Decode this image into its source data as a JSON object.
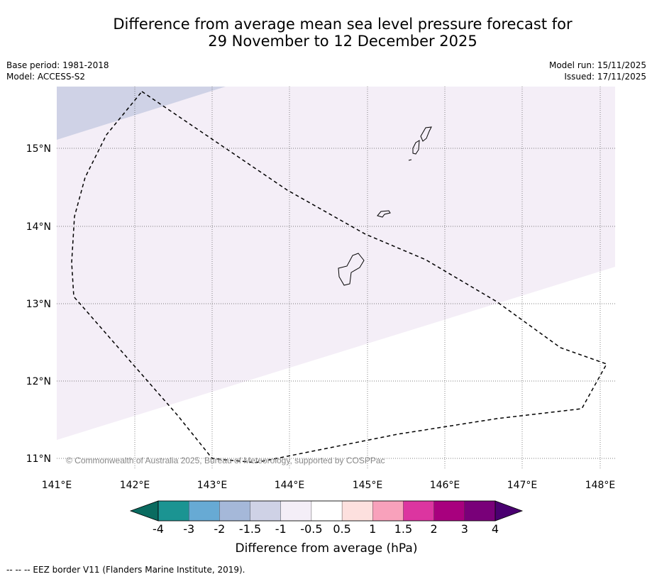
{
  "title": {
    "line1": "Difference from average mean sea level pressure forecast for",
    "line2": "29 November to 12 December 2025"
  },
  "meta": {
    "base_period": "Base period: 1981-2018",
    "model": "Model: ACCESS-S2",
    "model_run": "Model run: 15/11/2025",
    "issued": "Issued: 17/11/2025"
  },
  "map": {
    "lat_labels": [
      "15°N",
      "14°N",
      "13°N",
      "12°N",
      "11°N"
    ],
    "lon_labels": [
      "141°E",
      "142°E",
      "143°E",
      "144°E",
      "145°E",
      "146°E",
      "147°E",
      "148°E"
    ],
    "copyright": "© Commonwealth of Australia 2025, Bureau of Meteorology, supported by COSPPac",
    "colors": {
      "band_neg_1_5_to_neg_1": "#cfd2e6",
      "band_neg_1_to_neg_0_5": "#f4eef7",
      "band_neg_0_5_to_0_5": "#ffffff"
    }
  },
  "colorbar": {
    "tick_labels": [
      "-4",
      "-3",
      "-2",
      "-1.5",
      "-1",
      "-0.5",
      "0.5",
      "1",
      "1.5",
      "2",
      "3",
      "4"
    ],
    "bin_colors": [
      "#1b9492",
      "#67aad4",
      "#a5b8d9",
      "#cfd2e6",
      "#f4eef7",
      "#ffffff",
      "#fde0de",
      "#f8a1bb",
      "#dc35a0",
      "#a8007e",
      "#790079"
    ],
    "under_color": "#0a6b60",
    "over_color": "#4a0070",
    "label": "Difference from average (hPa)"
  },
  "footer": "--  --  -- EEZ border V11 (Flanders Marine Institute, 2019)."
}
